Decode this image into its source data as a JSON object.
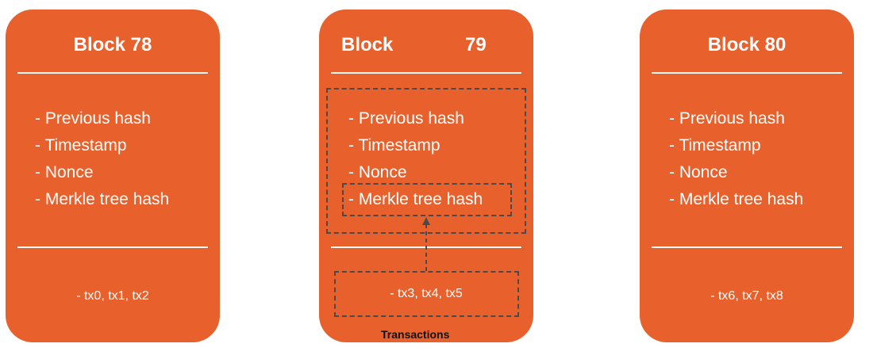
{
  "blocks": [
    {
      "title": "Block 78",
      "fields": [
        "- Previous hash",
        "- Timestamp",
        "- Nonce",
        "- Merkle tree hash"
      ],
      "transactions": "- tx0, tx1, tx2"
    },
    {
      "title_word": "Block",
      "title_number": "79",
      "fields": [
        "- Previous hash",
        "- Timestamp",
        "- Nonce",
        "- Merkle tree hash"
      ],
      "transactions": "- tx3, tx4, tx5"
    },
    {
      "title": "Block 80",
      "fields": [
        "- Previous hash",
        "- Timestamp",
        "- Nonce",
        "- Merkle tree hash"
      ],
      "transactions": "- tx6, tx7, tx8"
    }
  ],
  "transactions_caption": "Transactions",
  "colors": {
    "block_fill": "#e8602c",
    "text": "#ffffff",
    "dash": "#4a4a4a"
  }
}
